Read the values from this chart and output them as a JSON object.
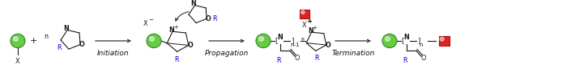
{
  "bg_color": "#ffffff",
  "figsize": [
    7.0,
    1.01
  ],
  "dpi": 100,
  "green_fill": "#66cc44",
  "green_edge": "#338822",
  "red_fill": "#dd2222",
  "red_edge": "#aa1111",
  "bond_color": "#1a1a1a",
  "blue_color": "#0000cc",
  "arrow_color": "#333333",
  "text_color": "#111111",
  "xlim": [
    0,
    700
  ],
  "ylim": [
    0,
    101
  ]
}
